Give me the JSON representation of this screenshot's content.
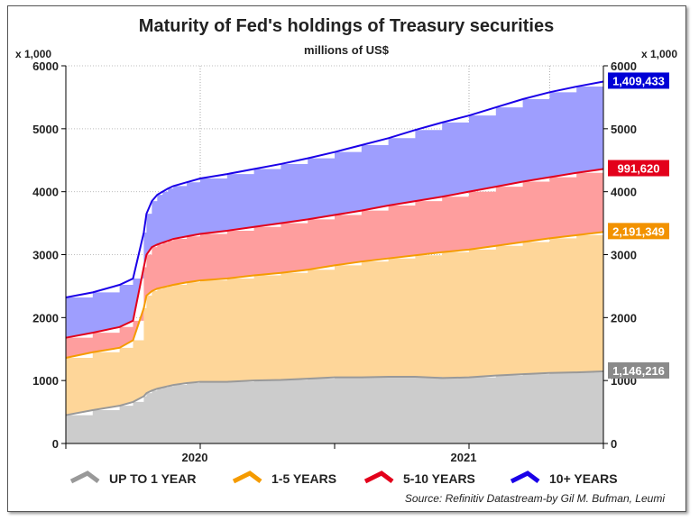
{
  "chart_data": {
    "type": "area",
    "title": "Maturity of Fed's holdings of Treasury securities",
    "subtitle": "millions of US$",
    "left_unit": "x 1,000",
    "right_unit": "x 1,000",
    "ylim": [
      0,
      6000
    ],
    "y_ticks": [
      0,
      1000,
      2000,
      3000,
      4000,
      5000,
      6000
    ],
    "y_tick_labels": [
      "0",
      "1000",
      "2000",
      "3000",
      "4000",
      "5000",
      "6000"
    ],
    "x_range": [
      2019.5,
      2021.5
    ],
    "x_ticks": [
      {
        "value": 2020,
        "label": "2020"
      },
      {
        "value": 2021,
        "label": "2021"
      }
    ],
    "x_minor_ticks": [
      2019.5,
      2020.5,
      2021.5
    ],
    "stacked": true,
    "x": [
      2019.5,
      2019.6,
      2019.7,
      2019.75,
      2019.79,
      2019.8,
      2019.82,
      2019.84,
      2019.86,
      2019.88,
      2019.9,
      2019.95,
      2020.0,
      2020.1,
      2020.2,
      2020.3,
      2020.4,
      2020.5,
      2020.6,
      2020.7,
      2020.8,
      2020.9,
      2021.0,
      2021.1,
      2021.2,
      2021.3,
      2021.4,
      2021.5
    ],
    "series": [
      {
        "name": "UP TO 1 YEAR",
        "color": "#999999",
        "fill": "#cccccc",
        "values": [
          450,
          530,
          600,
          660,
          750,
          800,
          840,
          870,
          890,
          910,
          930,
          960,
          980,
          980,
          1000,
          1010,
          1030,
          1050,
          1050,
          1060,
          1060,
          1040,
          1050,
          1080,
          1100,
          1120,
          1130,
          1146
        ]
      },
      {
        "name": "1-5 YEARS",
        "color": "#f59b00",
        "fill": "#fed699",
        "values": [
          1360,
          1450,
          1520,
          1640,
          2150,
          2350,
          2420,
          2460,
          2480,
          2500,
          2520,
          2560,
          2590,
          2620,
          2670,
          2710,
          2760,
          2830,
          2890,
          2940,
          2990,
          3040,
          3080,
          3140,
          3200,
          3260,
          3310,
          3360
        ]
      },
      {
        "name": "5-10 YEARS",
        "color": "#e3001b",
        "fill": "#fe9e9e",
        "values": [
          1680,
          1760,
          1850,
          1950,
          2800,
          3000,
          3120,
          3160,
          3190,
          3220,
          3250,
          3290,
          3330,
          3380,
          3440,
          3500,
          3560,
          3630,
          3700,
          3780,
          3850,
          3920,
          4000,
          4080,
          4160,
          4230,
          4300,
          4360
        ]
      },
      {
        "name": "10+ YEARS",
        "color": "#1a00e8",
        "fill": "#9e9efe",
        "values": [
          2320,
          2400,
          2520,
          2620,
          3350,
          3650,
          3850,
          3950,
          4000,
          4050,
          4090,
          4150,
          4210,
          4280,
          4360,
          4440,
          4530,
          4630,
          4740,
          4850,
          4980,
          5100,
          5210,
          5340,
          5470,
          5580,
          5670,
          5750
        ]
      }
    ],
    "end_labels": [
      {
        "text": "1,409,433",
        "color": "#0000d6",
        "series": "10+ YEARS"
      },
      {
        "text": "991,620",
        "color": "#e3001b",
        "series": "5-10 YEARS"
      },
      {
        "text": "2,191,349",
        "color": "#f29200",
        "series": "1-5 YEARS"
      },
      {
        "text": "1,146,216",
        "color": "#8a8a8a",
        "series": "UP TO 1 YEAR"
      }
    ],
    "legend": [
      "UP TO 1 YEAR",
      "1-5 YEARS",
      "5-10 YEARS",
      "10+ YEARS"
    ],
    "legend_position": "bottom",
    "grid": true,
    "source": "Source: Refinitiv Datastream-by Gil M. Bufman, Leumi"
  }
}
